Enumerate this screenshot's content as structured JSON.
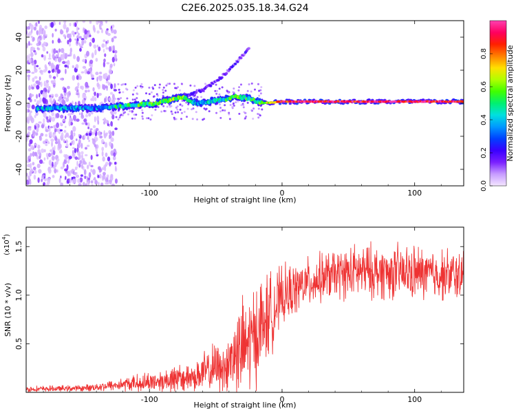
{
  "title": "C2E6.2025.035.18.34.G24",
  "chart_data": [
    {
      "type": "heatmap",
      "xlabel": "Height of straight line (km)",
      "ylabel": "Frequency (Hz)",
      "xlim": [
        -193,
        137
      ],
      "ylim": [
        -50,
        50
      ],
      "xticks": [
        -100,
        0,
        100
      ],
      "yticks": [
        -40,
        -20,
        0,
        20,
        40
      ],
      "colorbar": {
        "label": "Normalized spectral amplitude",
        "range": [
          0,
          1
        ],
        "ticks": [
          "0.0",
          "0.2",
          "0.4",
          "0.6",
          "0.8"
        ],
        "colors": [
          "#f4e6ff",
          "#c79cff",
          "#7a20ff",
          "#3a00ff",
          "#0040ff",
          "#0098ff",
          "#00e0e0",
          "#00f070",
          "#40ff00",
          "#b0ff00",
          "#ffe000",
          "#ff8000",
          "#ff2000",
          "#ff0060",
          "#ff40b0"
        ]
      },
      "ridge": [
        {
          "x": -185,
          "f": -3,
          "a": 0.38
        },
        {
          "x": -170,
          "f": -3,
          "a": 0.36
        },
        {
          "x": -155,
          "f": -3,
          "a": 0.35
        },
        {
          "x": -140,
          "f": -3,
          "a": 0.34
        },
        {
          "x": -125,
          "f": -2,
          "a": 0.45
        },
        {
          "x": -110,
          "f": -1,
          "a": 0.5
        },
        {
          "x": -95,
          "f": 0,
          "a": 0.55
        },
        {
          "x": -85,
          "f": 2,
          "a": 0.6
        },
        {
          "x": -75,
          "f": 4,
          "a": 0.55
        },
        {
          "x": -65,
          "f": 0,
          "a": 0.35
        },
        {
          "x": -55,
          "f": 1,
          "a": 0.4
        },
        {
          "x": -45,
          "f": 2,
          "a": 0.45
        },
        {
          "x": -35,
          "f": 4,
          "a": 0.55
        },
        {
          "x": -25,
          "f": 3,
          "a": 0.5
        },
        {
          "x": -15,
          "f": 0,
          "a": 0.55
        },
        {
          "x": 0,
          "f": 1,
          "a": 0.9
        },
        {
          "x": 25,
          "f": 1,
          "a": 0.95
        },
        {
          "x": 50,
          "f": 1,
          "a": 0.9
        },
        {
          "x": 75,
          "f": 1,
          "a": 0.95
        },
        {
          "x": 100,
          "f": 1,
          "a": 0.9
        },
        {
          "x": 125,
          "f": 1,
          "a": 0.95
        },
        {
          "x": 137,
          "f": 1,
          "a": 0.9
        }
      ],
      "secondary_tone": [
        {
          "x": -75,
          "f": 4
        },
        {
          "x": -60,
          "f": 8
        },
        {
          "x": -50,
          "f": 13
        },
        {
          "x": -40,
          "f": 20
        },
        {
          "x": -33,
          "f": 26
        },
        {
          "x": -25,
          "f": 33
        }
      ],
      "noise_region_x": [
        -193,
        -125
      ]
    },
    {
      "type": "line",
      "xlabel": "Height of straight line (km)",
      "ylabel": "SNR (10 * v/v)",
      "scale_label": "(x10",
      "scale_exponent": "4",
      "scale_close": ")",
      "xlim": [
        -193,
        137
      ],
      "ylim": [
        0,
        1.7
      ],
      "xticks": [
        -100,
        0,
        100
      ],
      "yticks": [
        "0.5",
        "1.0",
        "1.5"
      ],
      "series_color": "#ee3333",
      "envelope": [
        {
          "x": -193,
          "base": 0.03,
          "amp": 0.03
        },
        {
          "x": -150,
          "base": 0.04,
          "amp": 0.03
        },
        {
          "x": -125,
          "base": 0.07,
          "amp": 0.06
        },
        {
          "x": -100,
          "base": 0.1,
          "amp": 0.1
        },
        {
          "x": -75,
          "base": 0.13,
          "amp": 0.15
        },
        {
          "x": -60,
          "base": 0.18,
          "amp": 0.2
        },
        {
          "x": -45,
          "base": 0.25,
          "amp": 0.28
        },
        {
          "x": -35,
          "base": 0.35,
          "amp": 0.45
        },
        {
          "x": -25,
          "base": 0.45,
          "amp": 0.55
        },
        {
          "x": -15,
          "base": 0.65,
          "amp": 0.5
        },
        {
          "x": 0,
          "base": 0.95,
          "amp": 0.3
        },
        {
          "x": 15,
          "base": 1.08,
          "amp": 0.25
        },
        {
          "x": 35,
          "base": 1.18,
          "amp": 0.25
        },
        {
          "x": 60,
          "base": 1.22,
          "amp": 0.28
        },
        {
          "x": 100,
          "base": 1.2,
          "amp": 0.28
        },
        {
          "x": 137,
          "base": 1.18,
          "amp": 0.25
        }
      ]
    }
  ]
}
